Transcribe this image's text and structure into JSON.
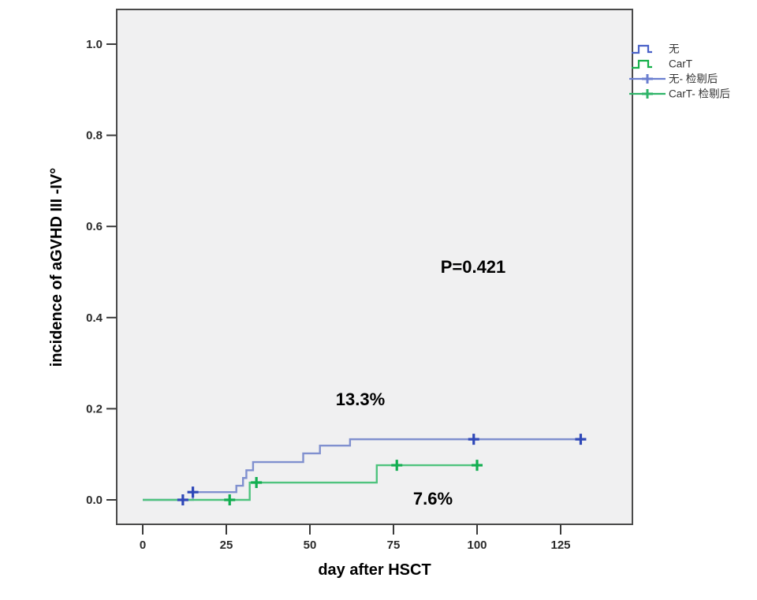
{
  "chart_data": {
    "type": "line",
    "subtype": "cumulative-incidence-step-km",
    "title": "",
    "xlabel": "day after HSCT",
    "ylabel": "incidence of aGVHD III -IV°",
    "x_ticks": [
      0,
      25,
      50,
      75,
      100,
      125
    ],
    "y_ticks": [
      "0.0",
      "0.2",
      "0.4",
      "0.6",
      "0.8",
      "1.0"
    ],
    "xlim": [
      -8,
      147
    ],
    "ylim": [
      -0.054,
      1.076
    ],
    "grid": false,
    "legend_position": "right-outside",
    "series": [
      {
        "name": "无",
        "line_color": "#8090CF",
        "censor_color": "#2F48B8",
        "steps": [
          [
            0,
            0
          ],
          [
            15,
            0.017
          ],
          [
            28,
            0.031
          ],
          [
            30,
            0.048
          ],
          [
            31,
            0.065
          ],
          [
            33,
            0.083
          ],
          [
            48,
            0.102
          ],
          [
            53,
            0.119
          ],
          [
            62,
            0.133
          ]
        ],
        "end_day": 132,
        "censor_points": [
          [
            12,
            0
          ],
          [
            15,
            0.017
          ],
          [
            99,
            0.133
          ],
          [
            131,
            0.133
          ]
        ],
        "final_value_label": "13.3%"
      },
      {
        "name": "CarT",
        "line_color": "#4FC37E",
        "censor_color": "#12AE50",
        "steps": [
          [
            0,
            0
          ],
          [
            32,
            0.038
          ],
          [
            70,
            0.076
          ]
        ],
        "end_day": 100,
        "censor_points": [
          [
            26,
            0
          ],
          [
            34,
            0.038
          ],
          [
            76,
            0.076
          ],
          [
            100,
            0.076
          ]
        ],
        "final_value_label": "7.6%"
      }
    ],
    "legend": [
      {
        "label": "无",
        "glyph": "step",
        "color": "#4A62C8"
      },
      {
        "label": "CarT",
        "glyph": "step",
        "color": "#17B04B"
      },
      {
        "label": "无- 检剔后",
        "glyph": "censored",
        "color": "#6B7FD0"
      },
      {
        "label": "CarT- 检剔后",
        "glyph": "censored",
        "color": "#2FB468"
      }
    ],
    "annotations": [
      {
        "text": "P=0.421",
        "day": 99,
        "value": 0.512
      },
      {
        "text": "13.3%",
        "day": 65,
        "value": 0.22
      },
      {
        "text": "7.6%",
        "day": 87,
        "value": 0.004
      }
    ]
  },
  "colors": {
    "page_bg": "#FFFFFF",
    "plot_bg": "#F0F0F1",
    "plot_border": "#4A4A4A",
    "tick_color": "#3A3A3A",
    "tick_label": "#2B2B2B",
    "axis_label": "#000000",
    "legend_text": "#333333",
    "annotation_text": "#000000"
  }
}
